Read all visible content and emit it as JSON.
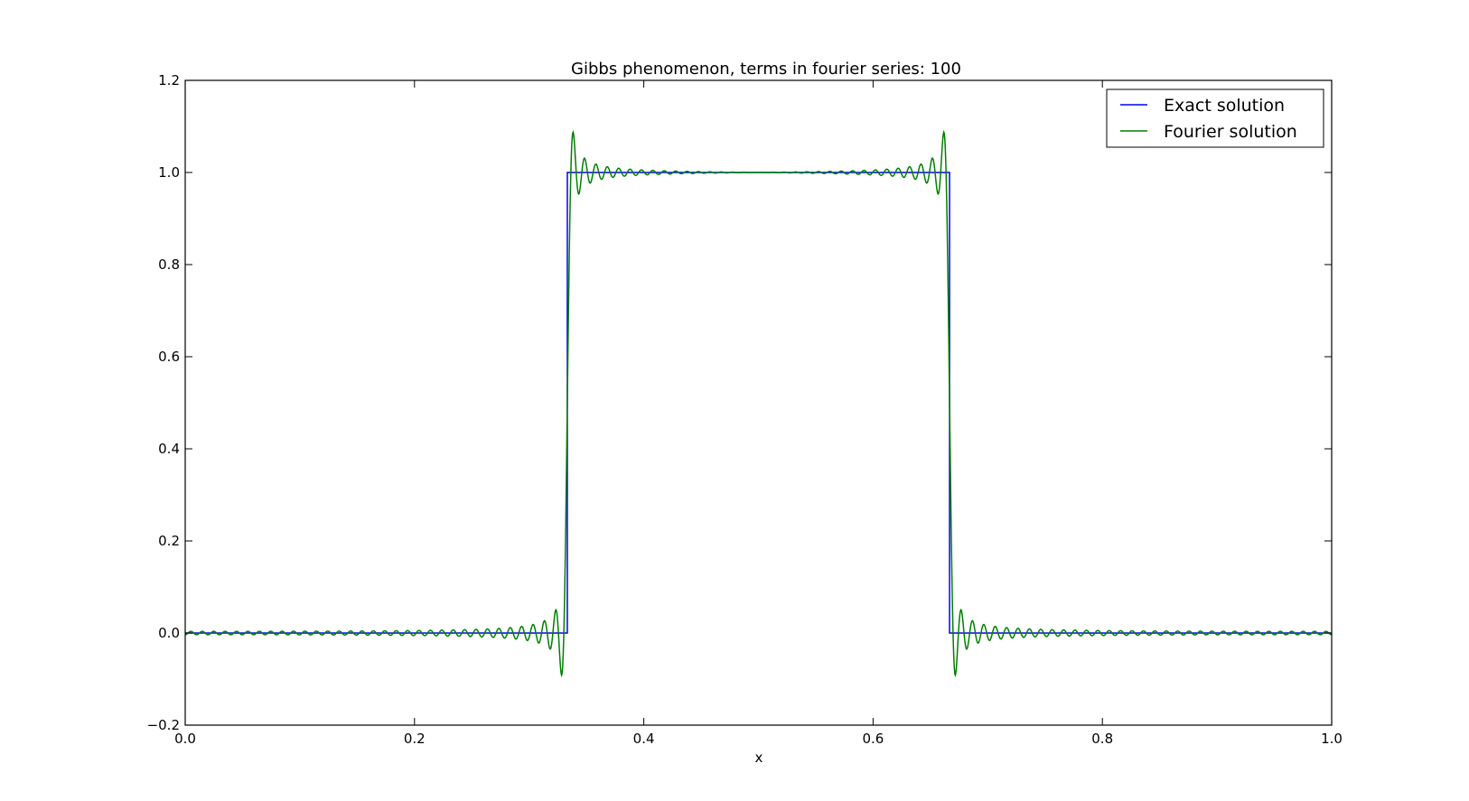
{
  "chart_data": {
    "type": "line",
    "title": "Gibbs phenomenon, terms in fourier series: 100",
    "xlabel": "x",
    "ylabel": "",
    "xlim": [
      0.0,
      1.0
    ],
    "ylim": [
      -0.2,
      1.2
    ],
    "x_ticks": [
      "0.0",
      "0.2",
      "0.4",
      "0.6",
      "0.8",
      "1.0"
    ],
    "y_ticks": [
      "−0.2",
      "0.0",
      "0.2",
      "0.4",
      "0.6",
      "0.8",
      "1.0",
      "1.2"
    ],
    "grid": false,
    "legend_position": "top-right",
    "series": [
      {
        "name": "Exact solution",
        "color": "#0000ff",
        "x": [
          0.0,
          0.3333,
          0.3333,
          0.6667,
          0.6667,
          1.0
        ],
        "y": [
          0.0,
          0.0,
          1.0,
          1.0,
          0.0,
          0.0
        ]
      },
      {
        "name": "Fourier solution",
        "color": "#008000",
        "function": "fourier_square_pulse",
        "pulse_start": 0.3333,
        "pulse_end": 0.6667,
        "terms": 100
      }
    ]
  }
}
